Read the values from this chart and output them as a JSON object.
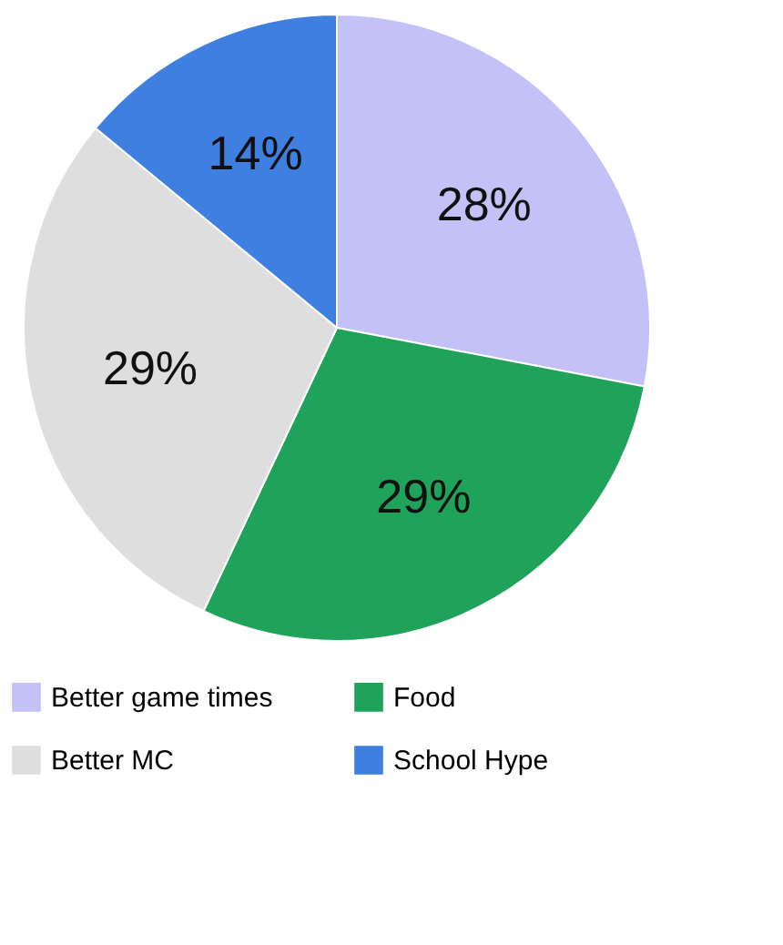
{
  "chart_data": {
    "type": "pie",
    "categories": [
      "Better game times",
      "Food",
      "Better MC",
      "School Hype"
    ],
    "values": [
      28,
      29,
      29,
      14
    ],
    "colors": [
      "#c3c1f7",
      "#1fa35a",
      "#dedede",
      "#3f7fe0"
    ],
    "value_labels": [
      "28%",
      "29%",
      "29%",
      "14%"
    ],
    "legend": "bottom"
  }
}
